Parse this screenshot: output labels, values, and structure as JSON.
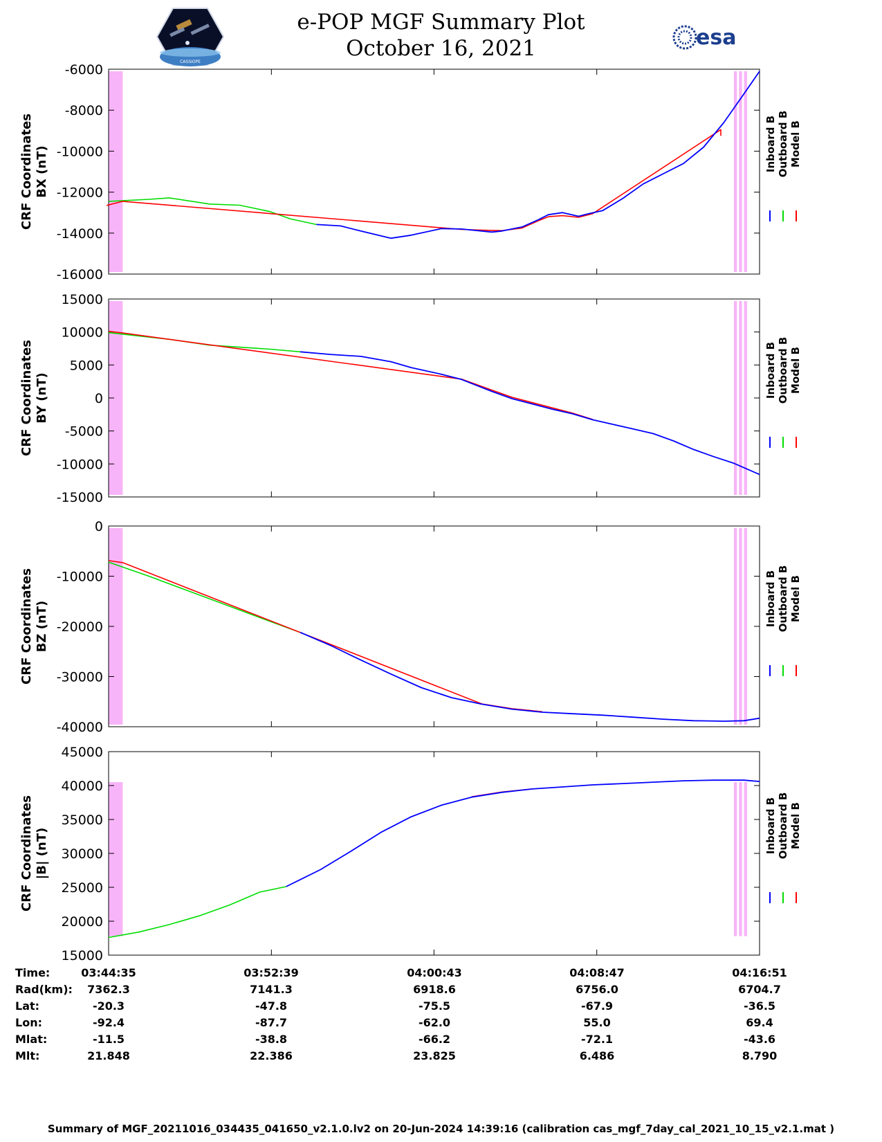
{
  "header": {
    "title_line1": "e-POP MGF Summary Plot",
    "title_line2": "October 16, 2021",
    "left_logo": "cassiope-satellite-logo",
    "left_logo_text": "CASSIOPE",
    "right_logo": "esa-logo",
    "right_logo_text": "esa"
  },
  "colors": {
    "inboard": "#0000ff",
    "outboard": "#00dd00",
    "model": "#ff0000",
    "shade": "#f8b4f8"
  },
  "chart_data": [
    {
      "type": "line",
      "ylabel": "CRF Coordinates BX (nT)",
      "ylim": [
        -16000,
        -6000
      ],
      "yticks": [
        -16000,
        -14000,
        -12000,
        -10000,
        -8000,
        -6000
      ],
      "xlim": [
        0,
        32.27
      ],
      "xticks": [
        0,
        8.07,
        16.13,
        24.2,
        32.27
      ],
      "shaded_ranges": [
        [
          -0.1,
          0.7
        ],
        [
          31.0,
          31.15
        ],
        [
          31.25,
          31.4
        ],
        [
          31.5,
          31.65
        ]
      ],
      "legend": [
        "Inboard B",
        "Outboard B",
        "Model B"
      ],
      "series": [
        {
          "name": "Outboard B",
          "color_key": "outboard",
          "x": [
            0,
            2,
            3,
            5,
            6.5,
            8,
            9,
            10.3
          ],
          "y": [
            -12450,
            -12350,
            -12280,
            -12580,
            -12640,
            -12950,
            -13300,
            -13580
          ]
        },
        {
          "name": "Inboard B",
          "color_key": "inboard",
          "x": [
            10.3,
            11.5,
            12.5,
            14,
            15,
            16.5,
            17.5,
            19,
            19.5,
            20.5,
            21.3,
            21.8,
            22.5,
            23.3,
            23.8,
            24.5,
            25.5,
            26.5,
            27.5,
            28.5,
            29.5,
            30.5,
            31.5,
            32.27
          ],
          "y": [
            -13580,
            -13650,
            -13900,
            -14250,
            -14100,
            -13780,
            -13800,
            -13950,
            -13900,
            -13700,
            -13350,
            -13100,
            -13000,
            -13180,
            -13050,
            -12900,
            -12300,
            -11600,
            -11100,
            -10600,
            -9800,
            -8600,
            -7200,
            -6100
          ]
        },
        {
          "name": "Model B",
          "color_key": "model",
          "x": [
            -0.1,
            0.7,
            17.5,
            18.7,
            19.5,
            20.5,
            21.3,
            21.8,
            22.5,
            23.3,
            24,
            30.35,
            30.35
          ],
          "y": [
            -12650,
            -12450,
            -13820,
            -13860,
            -13880,
            -13750,
            -13400,
            -13200,
            -13150,
            -13230,
            -13050,
            -8950,
            -9250
          ]
        }
      ]
    },
    {
      "type": "line",
      "ylabel": "CRF Coordinates BY (nT)",
      "ylim": [
        -15000,
        15000
      ],
      "yticks": [
        -15000,
        -10000,
        -5000,
        0,
        5000,
        10000,
        15000
      ],
      "xlim": [
        0,
        32.27
      ],
      "xticks": [
        0,
        8.07,
        16.13,
        24.2,
        32.27
      ],
      "shaded_ranges": [
        [
          -0.1,
          0.7
        ],
        [
          31.0,
          31.15
        ],
        [
          31.25,
          31.4
        ],
        [
          31.5,
          31.65
        ]
      ],
      "legend": [
        "Inboard B",
        "Outboard B",
        "Model B"
      ],
      "series": [
        {
          "name": "Outboard B",
          "color_key": "outboard",
          "x": [
            0,
            1.5,
            3,
            5,
            6.5,
            8,
            9.5
          ],
          "y": [
            9900,
            9400,
            8900,
            8000,
            7700,
            7400,
            7000
          ]
        },
        {
          "name": "Inboard B",
          "color_key": "inboard",
          "x": [
            9.5,
            11,
            12.5,
            14,
            15,
            16.5,
            17.5,
            19,
            20,
            21,
            22,
            23,
            24,
            25,
            26,
            27,
            28,
            29,
            30,
            31,
            32.27
          ],
          "y": [
            7000,
            6600,
            6300,
            5500,
            4600,
            3600,
            2800,
            1000,
            -100,
            -900,
            -1700,
            -2400,
            -3300,
            -4000,
            -4700,
            -5400,
            -6500,
            -7800,
            -8900,
            -9900,
            -11600
          ]
        },
        {
          "name": "Model B",
          "color_key": "model",
          "x": [
            0,
            0.7,
            17.5,
            19,
            20,
            21,
            22,
            23,
            24
          ],
          "y": [
            10100,
            9850,
            2850,
            1200,
            100,
            -700,
            -1500,
            -2300,
            -3250
          ]
        }
      ]
    },
    {
      "type": "line",
      "ylabel": "CRF Coordinates BZ (nT)",
      "ylim": [
        -40000,
        0
      ],
      "yticks": [
        -40000,
        -30000,
        -20000,
        -10000,
        0
      ],
      "xlim": [
        0,
        32.27
      ],
      "xticks": [
        0,
        8.07,
        16.13,
        24.2,
        32.27
      ],
      "shaded_ranges": [
        [
          -0.1,
          0.7
        ],
        [
          31.0,
          31.15
        ],
        [
          31.25,
          31.4
        ],
        [
          31.5,
          31.65
        ]
      ],
      "legend": [
        "Inboard B",
        "Outboard B",
        "Model B"
      ],
      "series": [
        {
          "name": "Outboard B",
          "color_key": "outboard",
          "x": [
            0,
            2,
            4,
            6,
            8,
            9.5
          ],
          "y": [
            -7200,
            -10000,
            -13000,
            -16000,
            -19000,
            -21200
          ]
        },
        {
          "name": "Inboard B",
          "color_key": "inboard",
          "x": [
            9.5,
            11,
            12.5,
            14,
            15.5,
            17,
            18.5,
            20,
            21.5,
            23,
            24.5,
            26,
            27.5,
            29,
            30.5,
            31.5,
            32.27
          ],
          "y": [
            -21200,
            -23800,
            -26700,
            -29500,
            -32200,
            -34200,
            -35500,
            -36500,
            -37100,
            -37400,
            -37700,
            -38100,
            -38500,
            -38800,
            -38900,
            -38800,
            -38300
          ]
        },
        {
          "name": "Model B",
          "color_key": "model",
          "x": [
            0,
            0.7,
            18.5,
            20,
            21.5
          ],
          "y": [
            -6900,
            -7300,
            -35450,
            -36400,
            -37000
          ]
        }
      ]
    },
    {
      "type": "line",
      "ylabel": "CRF Coordinates |B| (nT)",
      "ylim": [
        15000,
        45000
      ],
      "yticks": [
        15000,
        20000,
        25000,
        30000,
        35000,
        40000,
        45000
      ],
      "xlim": [
        0,
        32.27
      ],
      "xticks": [
        0,
        8.07,
        16.13,
        24.2,
        32.27
      ],
      "shaded_ranges": [
        [
          -0.1,
          0.7
        ],
        [
          31.0,
          31.15
        ],
        [
          31.25,
          31.4
        ],
        [
          31.5,
          31.65
        ]
      ],
      "shade_y_range": [
        17800,
        40500
      ],
      "legend": [
        "Inboard B",
        "Outboard B",
        "Model B"
      ],
      "series": [
        {
          "name": "Outboard B",
          "color_key": "outboard",
          "x": [
            0,
            1.5,
            3,
            4.5,
            6,
            7.5,
            8.8
          ],
          "y": [
            17600,
            18400,
            19500,
            20800,
            22400,
            24300,
            25100
          ]
        },
        {
          "name": "Inboard B",
          "color_key": "inboard",
          "x": [
            8.8,
            10.5,
            12,
            13.5,
            15,
            16.5,
            18,
            19.5,
            21,
            22.5,
            24,
            25.5,
            27,
            28.5,
            30,
            31.5,
            32.27
          ],
          "y": [
            25100,
            27600,
            30300,
            33100,
            35400,
            37100,
            38300,
            39000,
            39500,
            39800,
            40100,
            40300,
            40500,
            40700,
            40800,
            40800,
            40600
          ]
        },
        {
          "name": "Model B",
          "color_key": "model",
          "x": [
            18,
            19.5,
            21
          ],
          "y": [
            38350,
            39050,
            39500
          ]
        }
      ]
    }
  ],
  "ephemeris": {
    "labels": [
      "Time:",
      "Rad(km):",
      "Lat:",
      "Lon:",
      "Mlat:",
      "Mlt:"
    ],
    "columns": [
      [
        "03:44:35",
        "7362.3",
        "-20.3",
        "-92.4",
        "-11.5",
        "21.848"
      ],
      [
        "03:52:39",
        "7141.3",
        "-47.8",
        "-87.7",
        "-38.8",
        "22.386"
      ],
      [
        "04:00:43",
        "6918.6",
        "-75.5",
        "-62.0",
        "-66.2",
        "23.825"
      ],
      [
        "04:08:47",
        "6756.0",
        "-67.9",
        "55.0",
        "-72.1",
        "6.486"
      ],
      [
        "04:16:51",
        "6704.7",
        "-36.5",
        "69.4",
        "-43.6",
        "8.790"
      ]
    ]
  },
  "footer": "Summary of MGF_20211016_034435_041650_v2.1.0.lv2 on 20-Jun-2024 14:39:16 (calibration cas_mgf_7day_cal_2021_10_15_v2.1.mat )"
}
